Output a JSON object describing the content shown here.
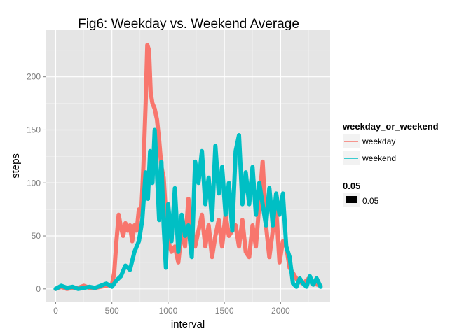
{
  "chart_data": {
    "type": "line",
    "title": "Fig6: Weekday vs. Weekend Average",
    "xlabel": "interval",
    "ylabel": "steps",
    "xlim": [
      -90,
      2440
    ],
    "ylim": [
      -12,
      244
    ],
    "xticks": [
      0,
      500,
      1000,
      1500,
      2000
    ],
    "yticks": [
      0,
      50,
      100,
      150,
      200
    ],
    "grid": true,
    "legend_position": "right",
    "legend_title": "weekday_or_weekend",
    "size_legend": {
      "title": "0.05",
      "label": "0.05",
      "color": "#000000"
    },
    "series": [
      {
        "name": "weekday",
        "color": "#F8766D",
        "x": [
          0,
          50,
          100,
          150,
          200,
          250,
          300,
          350,
          400,
          450,
          500,
          520,
          540,
          560,
          580,
          600,
          620,
          640,
          660,
          680,
          700,
          720,
          740,
          760,
          780,
          800,
          815,
          830,
          845,
          860,
          880,
          900,
          920,
          940,
          960,
          980,
          1000,
          1030,
          1060,
          1090,
          1120,
          1150,
          1180,
          1210,
          1240,
          1270,
          1300,
          1330,
          1360,
          1390,
          1420,
          1450,
          1480,
          1510,
          1540,
          1570,
          1600,
          1630,
          1660,
          1690,
          1720,
          1750,
          1780,
          1810,
          1840,
          1870,
          1900,
          1930,
          1960,
          1990,
          2020,
          2050,
          2080,
          2110,
          2150,
          2200,
          2250,
          2300,
          2355
        ],
        "y": [
          0,
          2,
          0,
          1,
          1,
          3,
          1,
          1,
          2,
          3,
          4,
          15,
          45,
          70,
          58,
          50,
          62,
          55,
          60,
          45,
          60,
          55,
          75,
          70,
          115,
          175,
          230,
          225,
          185,
          175,
          170,
          160,
          140,
          115,
          105,
          70,
          45,
          35,
          40,
          25,
          55,
          40,
          85,
          60,
          40,
          55,
          70,
          40,
          60,
          30,
          50,
          65,
          40,
          70,
          50,
          55,
          60,
          40,
          65,
          35,
          30,
          60,
          40,
          80,
          120,
          60,
          30,
          55,
          75,
          25,
          45,
          40,
          20,
          15,
          8,
          5,
          10,
          5,
          3
        ]
      },
      {
        "name": "weekend",
        "color": "#00BFC4",
        "x": [
          0,
          50,
          100,
          150,
          200,
          250,
          300,
          350,
          400,
          450,
          500,
          540,
          580,
          620,
          660,
          700,
          740,
          770,
          800,
          820,
          840,
          860,
          880,
          900,
          920,
          940,
          960,
          980,
          1000,
          1030,
          1060,
          1090,
          1120,
          1150,
          1180,
          1210,
          1240,
          1270,
          1300,
          1330,
          1360,
          1390,
          1420,
          1450,
          1480,
          1510,
          1540,
          1570,
          1600,
          1630,
          1660,
          1690,
          1720,
          1750,
          1780,
          1810,
          1840,
          1870,
          1900,
          1930,
          1960,
          1990,
          2020,
          2050,
          2080,
          2110,
          2140,
          2170,
          2200,
          2230,
          2260,
          2290,
          2320,
          2355
        ],
        "y": [
          0,
          3,
          1,
          2,
          0,
          1,
          2,
          1,
          3,
          5,
          2,
          8,
          12,
          22,
          18,
          35,
          45,
          65,
          110,
          85,
          130,
          100,
          150,
          110,
          65,
          120,
          60,
          20,
          80,
          45,
          95,
          35,
          70,
          50,
          60,
          30,
          120,
          100,
          130,
          80,
          105,
          65,
          135,
          90,
          115,
          70,
          100,
          55,
          130,
          145,
          80,
          110,
          80,
          115,
          70,
          100,
          80,
          60,
          95,
          60,
          90,
          70,
          90,
          40,
          30,
          5,
          2,
          10,
          5,
          2,
          12,
          4,
          10,
          2
        ]
      }
    ]
  }
}
